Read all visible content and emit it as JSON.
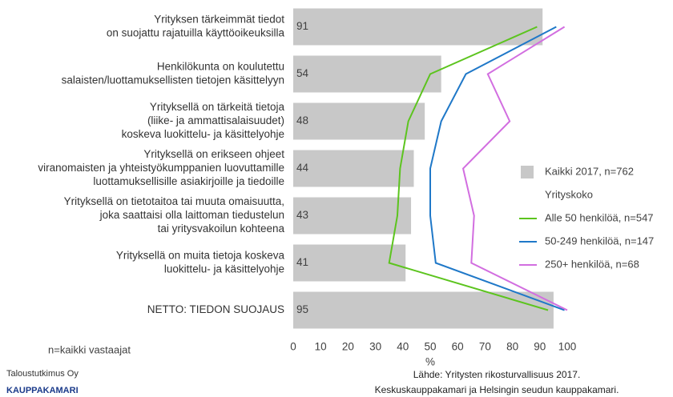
{
  "chart_data": {
    "type": "bar",
    "orientation": "horizontal",
    "categories": [
      [
        "Yrityksen tärkeimmät tiedot",
        "on suojattu rajatuilla käyttöoikeuksilla"
      ],
      [
        "Henkilökunta on koulutettu",
        "salaisten/luottamuksellisten tietojen käsittelyyn"
      ],
      [
        "Yrityksellä on tärkeitä tietoja",
        "(liike- ja ammattisalaisuudet)",
        "koskeva luokittelu- ja käsittelyohje"
      ],
      [
        "Yrityksellä on erikseen ohjeet",
        "viranomaisten ja yhteistyökumppanien luovuttamille",
        "luottamuksellisille asiakirjoille ja tiedoille"
      ],
      [
        "Yrityksellä on tietotaitoa tai muuta omaisuutta,",
        "joka saattaisi olla laittoman tiedustelun",
        "tai yritysvakoilun kohteena"
      ],
      [
        "Yrityksellä on muita tietoja koskeva",
        "luokittelu- ja käsittelyohje"
      ],
      [
        "NETTO: TIEDON SUOJAUS"
      ]
    ],
    "series": [
      {
        "name": "Kaikki 2017, n=762",
        "type": "bar",
        "color": "#c8c8c8",
        "values": [
          91,
          54,
          48,
          44,
          43,
          41,
          95
        ]
      },
      {
        "name": "Alle 50 henkilöä, n=547",
        "type": "line",
        "color": "#5cc41e",
        "values": [
          89,
          50,
          42,
          39,
          38,
          35,
          93
        ]
      },
      {
        "name": "50-249 henkilöä, n=147",
        "type": "line",
        "color": "#1f78c8",
        "values": [
          96,
          63,
          54,
          50,
          50,
          52,
          99
        ]
      },
      {
        "name": "250+ henkilöä, n=68",
        "type": "line",
        "color": "#d26ee0",
        "values": [
          99,
          71,
          79,
          62,
          66,
          65,
          100
        ]
      }
    ],
    "legend_title": "Yrityskoko",
    "xlabel": "%",
    "xlim": [
      0,
      100
    ],
    "xticks": [
      0,
      10,
      20,
      30,
      40,
      50,
      60,
      70,
      80,
      90,
      100
    ],
    "grid": false
  },
  "footer": {
    "note": "n=kaikki vastaajat",
    "source": [
      "Lähde: Yritysten rikosturvallisuus 2017.",
      "Keskuskauppakamari ja Helsingin seudun kauppakamari."
    ],
    "logo": [
      "Taloustutkimus Oy",
      "KAUPPAKAMARI"
    ]
  }
}
